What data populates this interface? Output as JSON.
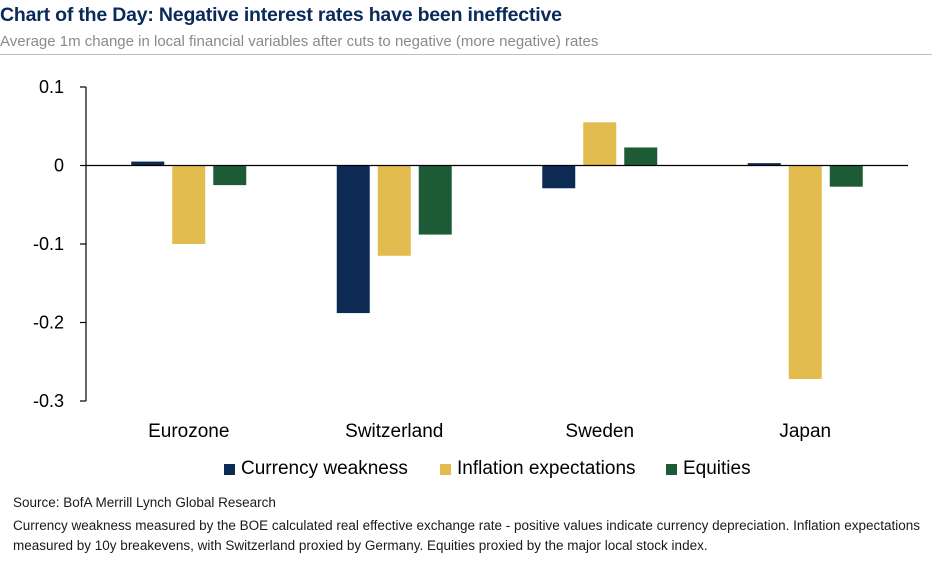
{
  "header": {
    "title": "Chart of the Day: Negative interest rates have been ineffective",
    "subtitle": "Average 1m change in local financial variables after cuts to negative (more negative) rates"
  },
  "chart_data": {
    "type": "bar",
    "title": "Chart of the Day: Negative interest rates have been ineffective",
    "subtitle": "Average 1m change in local financial variables after cuts to negative (more negative) rates",
    "xlabel": "",
    "ylabel": "",
    "categories": [
      "Eurozone",
      "Switzerland",
      "Sweden",
      "Japan"
    ],
    "series": [
      {
        "name": "Currency weakness",
        "color": "#0d2a55",
        "values": [
          0.005,
          -0.188,
          -0.029,
          0.003
        ]
      },
      {
        "name": "Inflation expectations",
        "color": "#e3bc4f",
        "values": [
          -0.1,
          -0.115,
          0.055,
          -0.272
        ]
      },
      {
        "name": "Equities",
        "color": "#1d5b37",
        "values": [
          -0.025,
          -0.088,
          0.023,
          -0.027
        ]
      }
    ],
    "ylim": [
      -0.3,
      0.1
    ],
    "yticks": [
      0.1,
      0,
      -0.1,
      -0.2,
      -0.3
    ],
    "ytick_labels": [
      "0.1",
      "0",
      "-0.1",
      "-0.2",
      "-0.3"
    ],
    "grid": false,
    "legend_position": "bottom"
  },
  "footer": {
    "source": "Source: BofA Merrill Lynch Global Research",
    "notes": "Currency weakness measured by the BOE calculated real effective exchange rate - positive values indicate currency depreciation. Inflation expectations measured by 10y breakevens, with Switzerland proxied by Germany. Equities proxied by the major local stock index."
  }
}
